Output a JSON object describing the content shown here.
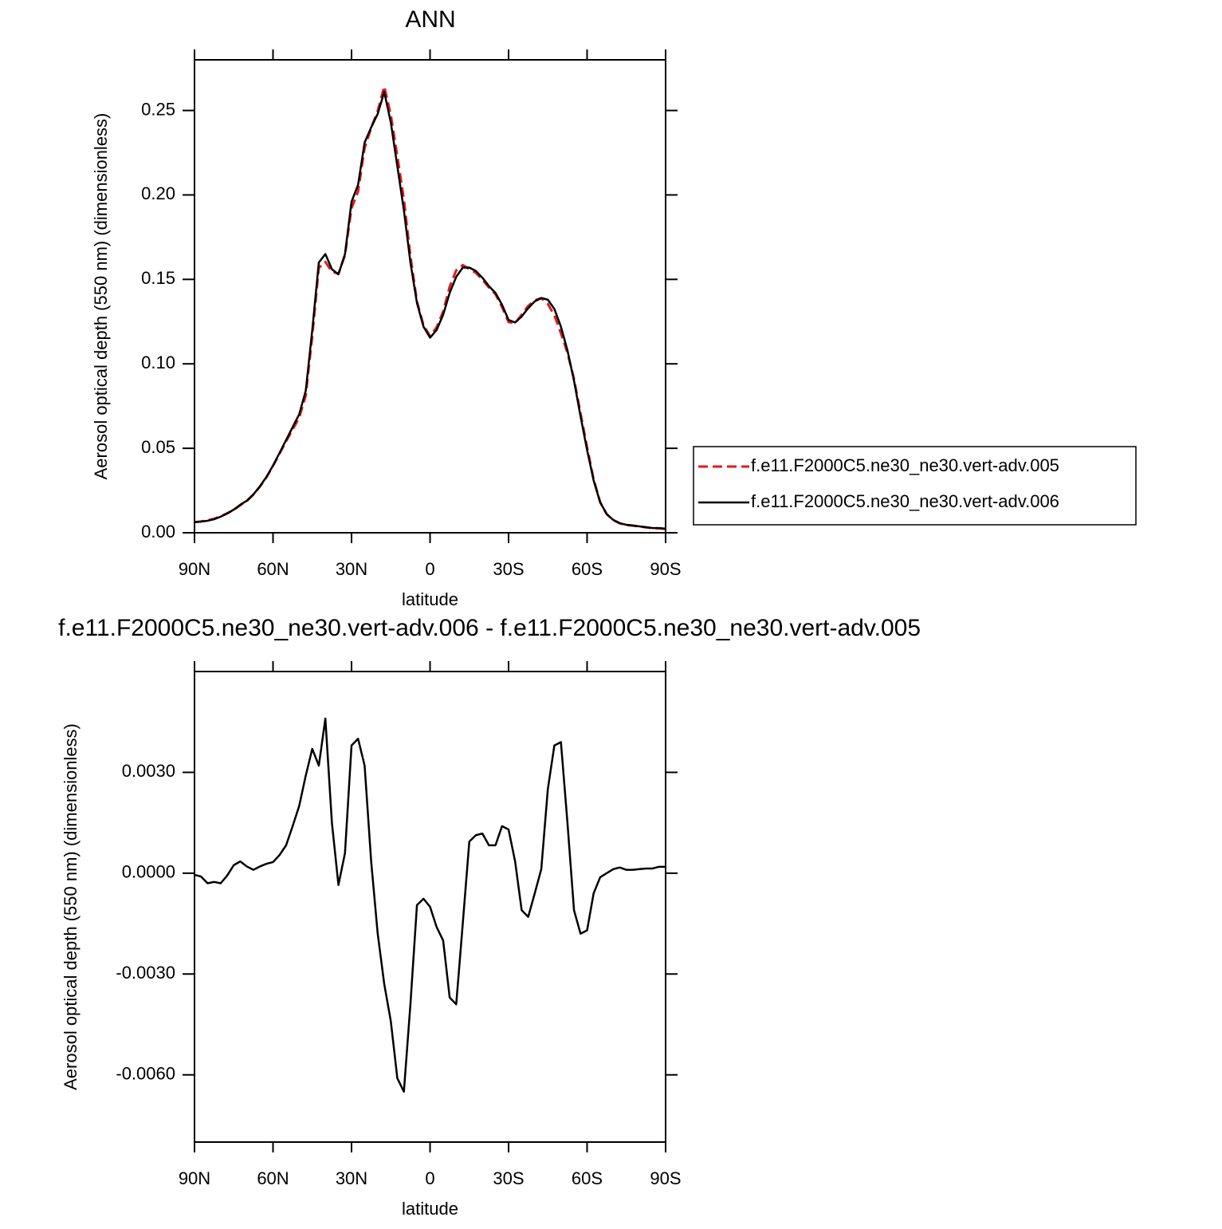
{
  "chart_data": [
    {
      "type": "line",
      "title": "ANN",
      "xlabel": "latitude",
      "ylabel": "Aerosol optical depth (550 nm) (dimensionless)",
      "x": [
        90,
        87.5,
        85,
        82.5,
        80,
        77.5,
        75,
        72.5,
        70,
        67.5,
        65,
        62.5,
        60,
        57.5,
        55,
        52.5,
        50,
        47.5,
        45,
        42.5,
        40,
        37.5,
        35,
        32.5,
        30,
        27.5,
        25,
        22.5,
        20,
        17.5,
        15,
        12.5,
        10,
        7.5,
        5,
        2.5,
        0,
        -2.5,
        -5,
        -7.5,
        -10,
        -12.5,
        -15,
        -17.5,
        -20,
        -22.5,
        -25,
        -27.5,
        -30,
        -32.5,
        -35,
        -37.5,
        -40,
        -42.5,
        -45,
        -47.5,
        -50,
        -52.5,
        -55,
        -57.5,
        -60,
        -62.5,
        -65,
        -67.5,
        -70,
        -72.5,
        -75,
        -77.5,
        -80,
        -82.5,
        -85,
        -87.5,
        -90
      ],
      "series": [
        {
          "name": "f.e11.F2000C5.ne30_ne30.vert-adv.005",
          "color": "#e41a1c",
          "dashed": true,
          "values": [
            0.0063,
            0.0067,
            0.0074,
            0.0083,
            0.0098,
            0.0115,
            0.0135,
            0.0163,
            0.0188,
            0.0226,
            0.0273,
            0.0328,
            0.0395,
            0.0468,
            0.0541,
            0.0611,
            0.0681,
            0.0811,
            0.1163,
            0.1568,
            0.1604,
            0.1545,
            0.1534,
            0.1644,
            0.1922,
            0.202,
            0.2278,
            0.2397,
            0.2498,
            0.2643,
            0.2474,
            0.2231,
            0.1975,
            0.1639,
            0.137,
            0.1228,
            0.1165,
            0.1216,
            0.131,
            0.1457,
            0.1554,
            0.1585,
            0.1561,
            0.1539,
            0.1498,
            0.1452,
            0.1412,
            0.1336,
            0.1247,
            0.1241,
            0.1291,
            0.1343,
            0.1376,
            0.1389,
            0.1355,
            0.1287,
            0.1181,
            0.1065,
            0.0911,
            0.0708,
            0.0507,
            0.0316,
            0.0181,
            0.011,
            0.0075,
            0.0055,
            0.0046,
            0.0042,
            0.0037,
            0.0032,
            0.0027,
            0.0026,
            0.0022
          ]
        },
        {
          "name": "f.e11.F2000C5.ne30_ne30.vert-adv.006",
          "color": "#000000",
          "dashed": false,
          "values": [
            0.0062,
            0.0066,
            0.0071,
            0.008,
            0.0095,
            0.0114,
            0.0137,
            0.0166,
            0.019,
            0.0227,
            0.0275,
            0.0331,
            0.0398,
            0.0473,
            0.0549,
            0.0625,
            0.0701,
            0.084,
            0.12,
            0.16,
            0.165,
            0.156,
            0.153,
            0.165,
            0.196,
            0.206,
            0.231,
            0.24,
            0.248,
            0.261,
            0.243,
            0.217,
            0.191,
            0.16,
            0.136,
            0.122,
            0.1155,
            0.12,
            0.129,
            0.142,
            0.1515,
            0.157,
            0.157,
            0.155,
            0.151,
            0.146,
            0.142,
            0.135,
            0.126,
            0.1245,
            0.128,
            0.133,
            0.137,
            0.139,
            0.138,
            0.1325,
            0.122,
            0.108,
            0.09,
            0.069,
            0.049,
            0.031,
            0.018,
            0.011,
            0.0076,
            0.0057,
            0.0047,
            0.0043,
            0.0038,
            0.0033,
            0.0028,
            0.0028,
            0.0024
          ]
        }
      ],
      "xlim": [
        90,
        -90
      ],
      "xticks": [
        {
          "value": 90,
          "label": "90N"
        },
        {
          "value": 60,
          "label": "60N"
        },
        {
          "value": 30,
          "label": "30N"
        },
        0,
        {
          "value": -30,
          "label": "30S"
        },
        {
          "value": -60,
          "label": "60S"
        },
        {
          "value": -90,
          "label": "90S"
        }
      ],
      "ylim": [
        0,
        0.28
      ],
      "yticks": [
        {
          "value": 0,
          "label": "0.00"
        },
        {
          "value": 0.05,
          "label": "0.05"
        },
        {
          "value": 0.1,
          "label": "0.10"
        },
        {
          "value": 0.15,
          "label": "0.15"
        },
        {
          "value": 0.2,
          "label": "0.20"
        },
        {
          "value": 0.25,
          "label": "0.25"
        }
      ],
      "legend": "right"
    },
    {
      "type": "line",
      "title": "f.e11.F2000C5.ne30_ne30.vert-adv.006 - f.e11.F2000C5.ne30_ne30.vert-adv.005",
      "xlabel": "latitude",
      "ylabel": "Aerosol optical depth (550 nm) (dimensionless)",
      "x": [
        90,
        87.5,
        85,
        82.5,
        80,
        77.5,
        75,
        72.5,
        70,
        67.5,
        65,
        62.5,
        60,
        57.5,
        55,
        52.5,
        50,
        47.5,
        45,
        42.5,
        40,
        37.5,
        35,
        32.5,
        30,
        27.5,
        25,
        22.5,
        20,
        17.5,
        15,
        12.5,
        10,
        7.5,
        5,
        2.5,
        0,
        -2.5,
        -5,
        -7.5,
        -10,
        -12.5,
        -15,
        -17.5,
        -20,
        -22.5,
        -25,
        -27.5,
        -30,
        -32.5,
        -35,
        -37.5,
        -40,
        -42.5,
        -45,
        -47.5,
        -50,
        -52.5,
        -55,
        -57.5,
        -60,
        -62.5,
        -65,
        -67.5,
        -70,
        -72.5,
        -75,
        -77.5,
        -80,
        -82.5,
        -85,
        -87.5,
        -90
      ],
      "series": [
        {
          "color": "#000000",
          "dashed": false,
          "values": [
            -5e-05,
            -0.0001,
            -0.0003,
            -0.00026,
            -0.0003,
            -7e-05,
            0.00024,
            0.00035,
            0.0002,
            0.0001,
            0.0002,
            0.00028,
            0.00033,
            0.00054,
            0.00083,
            0.0014,
            0.002,
            0.0029,
            0.0037,
            0.0032,
            0.0046,
            0.0015,
            -0.00035,
            0.0006,
            0.0038,
            0.004,
            0.0032,
            0.00035,
            -0.0018,
            -0.0033,
            -0.0044,
            -0.0061,
            -0.0065,
            -0.0039,
            -0.00095,
            -0.00076,
            -0.001,
            -0.0016,
            -0.002,
            -0.0037,
            -0.0039,
            -0.0015,
            0.00094,
            0.00113,
            0.00118,
            0.00083,
            0.00083,
            0.0014,
            0.0013,
            0.00035,
            -0.0011,
            -0.0013,
            -0.0006,
            0.00012,
            0.0025,
            0.0038,
            0.0039,
            0.0015,
            -0.0011,
            -0.0018,
            -0.0017,
            -0.0006,
            -0.00012,
            0,
            0.00012,
            0.00017,
            0.0001,
            0.0001,
            0.00012,
            0.00014,
            0.00014,
            0.00019,
            0.00019
          ]
        }
      ],
      "xlim": [
        90,
        -90
      ],
      "xticks": [
        {
          "value": 90,
          "label": "90N"
        },
        {
          "value": 60,
          "label": "60N"
        },
        {
          "value": 30,
          "label": "30N"
        },
        0,
        {
          "value": -30,
          "label": "30S"
        },
        {
          "value": -60,
          "label": "60S"
        },
        {
          "value": -90,
          "label": "90S"
        }
      ],
      "ylim": [
        -0.008,
        0.006
      ],
      "yticks": [
        {
          "value": -0.006,
          "label": "-0.0060"
        },
        {
          "value": -0.003,
          "label": "-0.0030"
        },
        {
          "value": 0,
          "label": "0.0000"
        },
        {
          "value": 0.003,
          "label": "0.0030"
        }
      ]
    }
  ]
}
